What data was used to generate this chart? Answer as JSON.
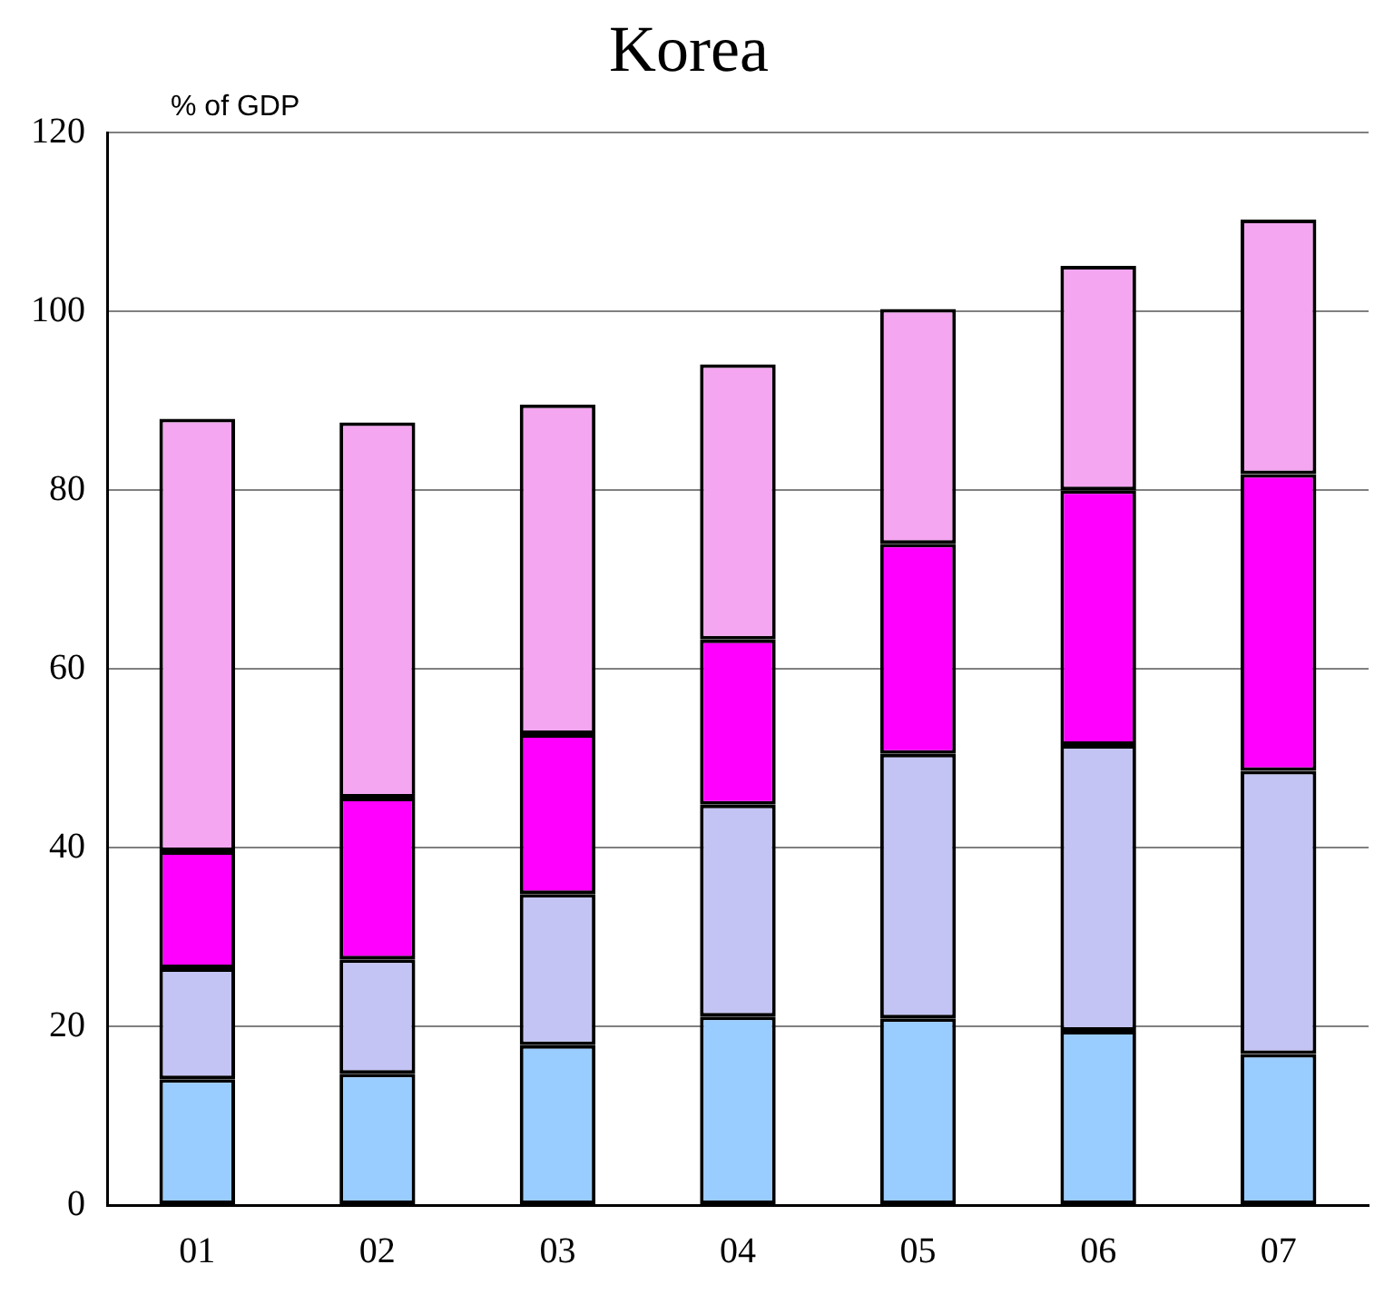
{
  "chart_data": {
    "type": "bar",
    "title": "Korea",
    "ylabel": "% of GDP",
    "stacked": true,
    "grid": "y",
    "legend": false,
    "categories": [
      "01",
      "02",
      "03",
      "04",
      "05",
      "06",
      "07"
    ],
    "ylim": [
      0,
      120
    ],
    "yticks": [
      0,
      20,
      40,
      60,
      80,
      100,
      120
    ],
    "series": [
      {
        "color": "#99ccff",
        "values": [
          14.1,
          14.7,
          17.9,
          21.1,
          20.9,
          19.5,
          16.9
        ]
      },
      {
        "color": "#c4c4f4",
        "values": [
          12.4,
          12.8,
          16.9,
          23.7,
          29.6,
          32.0,
          31.7
        ]
      },
      {
        "color": "#ff00ff",
        "values": [
          13.1,
          18.1,
          17.9,
          18.5,
          23.5,
          28.5,
          33.2
        ]
      },
      {
        "color": "#f4a6f0",
        "values": [
          48.4,
          42.0,
          36.9,
          30.8,
          26.3,
          25.1,
          28.5
        ]
      }
    ]
  }
}
